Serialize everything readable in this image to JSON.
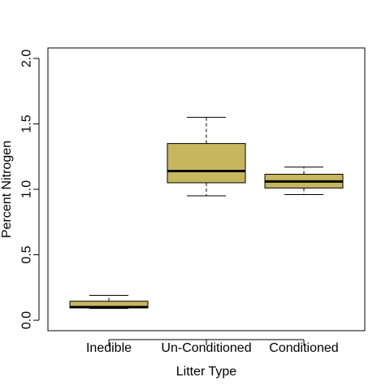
{
  "chart_data": {
    "type": "boxplot",
    "title": "",
    "xlabel": "Litter Type",
    "ylabel": "Percent Nitrogen",
    "ylim": [
      -0.08,
      2.08
    ],
    "yticks": [
      "0.0",
      "0.5",
      "1.0",
      "1.5",
      "2.0"
    ],
    "grid": false,
    "legend": "none",
    "box_color": "#C6B75F",
    "categories": [
      "Inedible",
      "Un-Conditioned",
      "Conditioned"
    ],
    "boxes": [
      {
        "category": "Inedible",
        "whisker_low": 0.09,
        "q1": 0.095,
        "median": 0.1,
        "q3": 0.145,
        "whisker_high": 0.19
      },
      {
        "category": "Un-Conditioned",
        "whisker_low": 0.95,
        "q1": 1.05,
        "median": 1.14,
        "q3": 1.35,
        "whisker_high": 1.55
      },
      {
        "category": "Conditioned",
        "whisker_low": 0.96,
        "q1": 1.01,
        "median": 1.06,
        "q3": 1.115,
        "whisker_high": 1.17
      }
    ]
  }
}
